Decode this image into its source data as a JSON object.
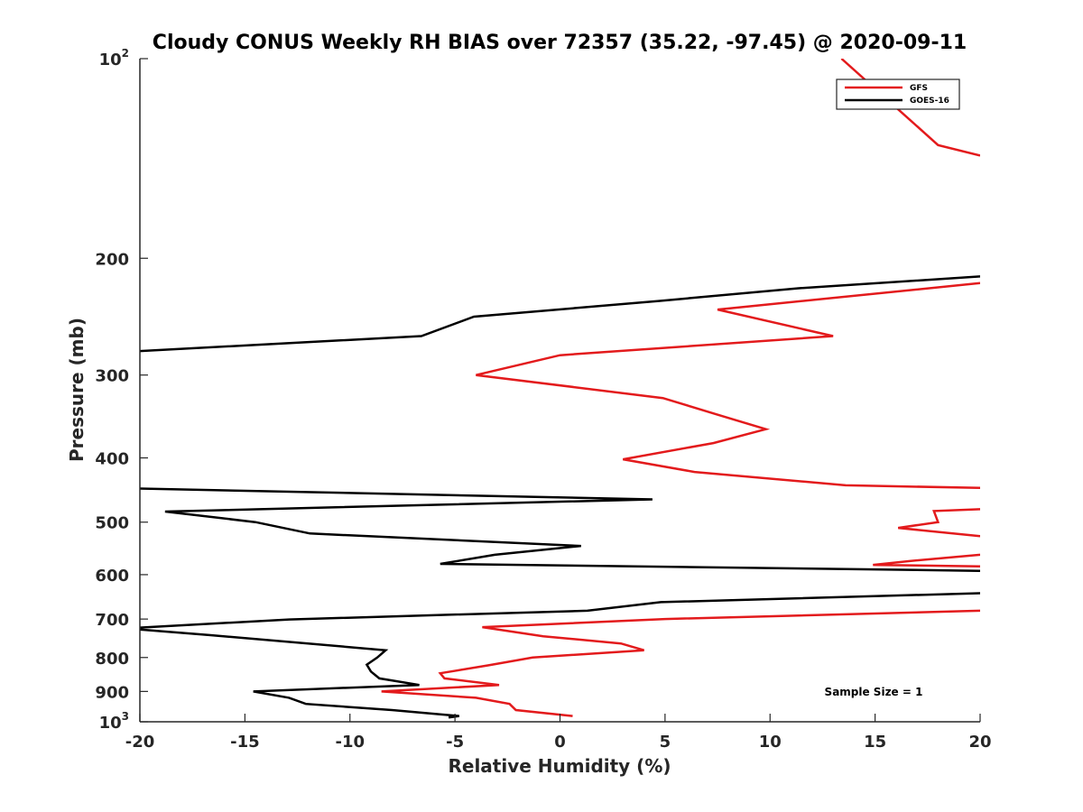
{
  "chart_data": {
    "type": "line",
    "title": "Cloudy CONUS Weekly RH BIAS over 72357 (35.22, -97.45) @ 2020-09-11",
    "xlabel": "Relative Humidity (%)",
    "ylabel": "Pressure (mb)",
    "xlim": [
      -20,
      20
    ],
    "ylim": [
      100,
      1000
    ],
    "yscale": "log",
    "y_reversed": true,
    "grid": false,
    "legend_position": "top-right",
    "x_ticks": [
      "-20",
      "-15",
      "-10",
      "-5",
      "0",
      "5",
      "10",
      "15",
      "20"
    ],
    "y_ticks": [
      {
        "value": 100,
        "base": "10",
        "exp": "2"
      },
      {
        "value": 200,
        "label": "200"
      },
      {
        "value": 300,
        "label": "300"
      },
      {
        "value": 400,
        "label": "400"
      },
      {
        "value": 500,
        "label": "500"
      },
      {
        "value": 600,
        "label": "600"
      },
      {
        "value": 700,
        "label": "700"
      },
      {
        "value": 800,
        "label": "800"
      },
      {
        "value": 900,
        "label": "900"
      },
      {
        "value": 1000,
        "base": "10",
        "exp": "3"
      }
    ],
    "annotation": "Sample Size = 1",
    "series": [
      {
        "name": "GFS",
        "color": "#e31a1c",
        "segments": [
          [
            [
              13.4,
              100
            ],
            [
              18.0,
              135
            ],
            [
              20.0,
              140
            ]
          ],
          [
            [
              20.0,
              218
            ],
            [
              7.5,
              239
            ],
            [
              13.0,
              262
            ],
            [
              0.0,
              280
            ],
            [
              -4.0,
              300
            ],
            [
              4.9,
              325
            ],
            [
              7.6,
              345
            ],
            [
              9.8,
              362
            ],
            [
              7.3,
              380
            ],
            [
              3.0,
              402
            ],
            [
              6.4,
              420
            ],
            [
              13.6,
              440
            ],
            [
              20.0,
              444
            ]
          ],
          [
            [
              20.0,
              478
            ],
            [
              17.8,
              481
            ],
            [
              18.0,
              500
            ],
            [
              16.1,
              510
            ],
            [
              20.0,
              525
            ]
          ],
          [
            [
              20.0,
              560
            ],
            [
              16.7,
              572
            ],
            [
              14.9,
              580
            ],
            [
              20.0,
              583
            ]
          ],
          [
            [
              20.0,
              680
            ],
            [
              5.0,
              700
            ],
            [
              -3.7,
              720
            ],
            [
              -0.8,
              743
            ],
            [
              2.9,
              762
            ],
            [
              4.0,
              780
            ],
            [
              -1.3,
              800
            ],
            [
              -3.4,
              822
            ],
            [
              -5.7,
              845
            ],
            [
              -5.5,
              860
            ],
            [
              -2.9,
              880
            ],
            [
              -8.5,
              900
            ],
            [
              -4.0,
              920
            ],
            [
              -2.4,
              940
            ],
            [
              -2.1,
              960
            ],
            [
              0.6,
              980
            ]
          ]
        ]
      },
      {
        "name": "GOES-16",
        "color": "#000000",
        "segments": [
          [
            [
              20.0,
              213
            ],
            [
              11.3,
              222
            ],
            [
              4.7,
              232
            ],
            [
              -4.1,
              245
            ],
            [
              -6.6,
              262
            ],
            [
              -20.0,
              276
            ]
          ],
          [
            [
              -20.0,
              445
            ],
            [
              4.4,
              462
            ],
            [
              -18.8,
              482
            ],
            [
              -14.5,
              500
            ],
            [
              -11.9,
              520
            ],
            [
              1.0,
              543
            ],
            [
              -3.1,
              560
            ],
            [
              -5.7,
              578
            ],
            [
              20.0,
              592
            ]
          ],
          [
            [
              20.0,
              640
            ],
            [
              4.8,
              660
            ],
            [
              1.3,
              680
            ],
            [
              -12.9,
              701
            ],
            [
              -20.0,
              721
            ],
            [
              -20.0,
              726
            ],
            [
              -16.7,
              740
            ],
            [
              -8.3,
              780
            ],
            [
              -8.7,
              800
            ],
            [
              -9.2,
              820
            ],
            [
              -9.0,
              840
            ],
            [
              -8.6,
              860
            ],
            [
              -6.7,
              880
            ],
            [
              -14.6,
              900
            ],
            [
              -12.9,
              920
            ],
            [
              -12.1,
              940
            ],
            [
              -8.0,
              960
            ],
            [
              -4.8,
              980
            ],
            [
              -5.3,
              985
            ]
          ]
        ]
      }
    ]
  }
}
